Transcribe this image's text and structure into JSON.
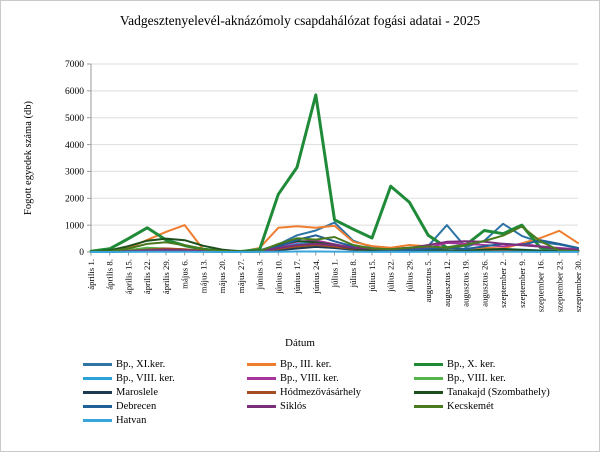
{
  "window": {
    "background": "#ffffff",
    "border_color": "#c9c9c9"
  },
  "chart_data": {
    "type": "line",
    "title": "Vadgesztenyelevél-aknázómoly csapdahálózat fogási adatai - 2025",
    "xlabel": "Dátum",
    "ylabel": "Fogott egyedek száma (db)",
    "ylim": [
      0,
      7000
    ],
    "ytick_step": 1000,
    "grid": true,
    "legend_position": "bottom",
    "categories": [
      "április 1.",
      "április 8.",
      "április 15.",
      "április 22.",
      "április 29.",
      "május 6.",
      "május 13.",
      "május 20.",
      "május 27.",
      "június 3.",
      "június 10.",
      "június 17.",
      "június 24.",
      "július 1.",
      "július 8.",
      "július 15.",
      "július 22.",
      "július 29.",
      "augusztus 5.",
      "augusztus 12.",
      "augusztus 19.",
      "augusztus 26.",
      "szeptember 2.",
      "szeptember 9.",
      "szeptember 16.",
      "szeptember 23.",
      "szeptember 30."
    ],
    "series": [
      {
        "name": "Bp., XI.ker.",
        "color": "#2e75a6",
        "width": 2,
        "values": [
          20,
          30,
          50,
          80,
          100,
          90,
          50,
          20,
          10,
          60,
          280,
          620,
          800,
          1100,
          420,
          180,
          120,
          160,
          220,
          1000,
          180,
          420,
          1050,
          600,
          360,
          280,
          150
        ]
      },
      {
        "name": "Bp., III. ker.",
        "color": "#ef7d2f",
        "width": 2,
        "values": [
          10,
          40,
          150,
          450,
          750,
          1000,
          90,
          30,
          10,
          150,
          900,
          960,
          900,
          980,
          380,
          220,
          160,
          260,
          210,
          160,
          110,
          160,
          130,
          320,
          520,
          790,
          330
        ]
      },
      {
        "name": "Bp., X. ker.",
        "color": "#1f8a38",
        "width": 3,
        "values": [
          30,
          120,
          500,
          900,
          450,
          240,
          100,
          40,
          20,
          90,
          2150,
          3150,
          5850,
          1200,
          850,
          520,
          2450,
          1850,
          620,
          160,
          260,
          800,
          680,
          1000,
          160,
          60,
          40
        ]
      },
      {
        "name": "Bp., VIII. ker.",
        "color": "#2ba3d8",
        "width": 2,
        "values": [
          0,
          10,
          20,
          40,
          60,
          70,
          30,
          10,
          5,
          25,
          160,
          300,
          340,
          290,
          130,
          70,
          50,
          60,
          80,
          70,
          50,
          90,
          110,
          90,
          60,
          40,
          30
        ]
      },
      {
        "name": "Bp., VIII. ker.",
        "color": "#a8359e",
        "width": 2,
        "values": [
          0,
          10,
          30,
          70,
          100,
          80,
          30,
          10,
          5,
          30,
          210,
          380,
          430,
          290,
          160,
          110,
          90,
          130,
          160,
          340,
          300,
          260,
          210,
          300,
          210,
          150,
          100
        ]
      },
      {
        "name": "Bp., VIII. ker.",
        "color": "#55b44a",
        "width": 2,
        "values": [
          10,
          20,
          70,
          160,
          130,
          90,
          40,
          10,
          5,
          15,
          90,
          160,
          210,
          160,
          90,
          50,
          30,
          40,
          60,
          50,
          30,
          60,
          90,
          70,
          40,
          30,
          20
        ]
      },
      {
        "name": "Maroslele",
        "color": "#1c3a52",
        "width": 2,
        "values": [
          5,
          10,
          20,
          40,
          60,
          50,
          20,
          10,
          5,
          15,
          70,
          130,
          190,
          150,
          80,
          40,
          30,
          40,
          50,
          40,
          30,
          50,
          60,
          50,
          40,
          30,
          20
        ]
      },
      {
        "name": "Hódmezővásárhely",
        "color": "#a34d21",
        "width": 2,
        "values": [
          5,
          15,
          40,
          90,
          130,
          100,
          40,
          15,
          5,
          25,
          110,
          210,
          260,
          200,
          110,
          60,
          40,
          60,
          80,
          60,
          50,
          70,
          80,
          70,
          50,
          40,
          30
        ]
      },
      {
        "name": "Tanakajd (Szombathely)",
        "color": "#1c4f1c",
        "width": 2,
        "values": [
          10,
          60,
          220,
          420,
          500,
          440,
          230,
          90,
          20,
          40,
          260,
          410,
          360,
          260,
          130,
          60,
          40,
          60,
          80,
          60,
          40,
          90,
          110,
          80,
          50,
          30,
          20
        ]
      },
      {
        "name": "Debrecen",
        "color": "#1f6096",
        "width": 2,
        "values": [
          5,
          15,
          30,
          60,
          80,
          60,
          30,
          10,
          5,
          30,
          210,
          450,
          620,
          400,
          210,
          110,
          60,
          80,
          110,
          160,
          110,
          210,
          310,
          260,
          440,
          300,
          150
        ]
      },
      {
        "name": "Siklós",
        "color": "#7a2f7a",
        "width": 2,
        "values": [
          0,
          10,
          20,
          50,
          80,
          60,
          30,
          10,
          5,
          20,
          150,
          260,
          310,
          250,
          160,
          120,
          100,
          150,
          260,
          380,
          400,
          380,
          300,
          250,
          200,
          120,
          80
        ]
      },
      {
        "name": "Kecskemét",
        "color": "#4a7a1e",
        "width": 2,
        "values": [
          10,
          30,
          130,
          300,
          360,
          250,
          100,
          40,
          10,
          30,
          300,
          510,
          460,
          560,
          260,
          130,
          100,
          160,
          210,
          160,
          260,
          410,
          610,
          950,
          400,
          60,
          30
        ]
      },
      {
        "name": "Hatvan",
        "color": "#3aa5d9",
        "width": 2,
        "values": [
          0,
          0,
          5,
          10,
          10,
          10,
          5,
          0,
          0,
          5,
          10,
          20,
          20,
          15,
          10,
          5,
          5,
          5,
          10,
          10,
          5,
          10,
          10,
          10,
          5,
          5,
          5
        ]
      }
    ],
    "plot_colors": {
      "gridline": "#dedede",
      "axis": "#9a9a9a",
      "tick_label": "#000000"
    }
  }
}
